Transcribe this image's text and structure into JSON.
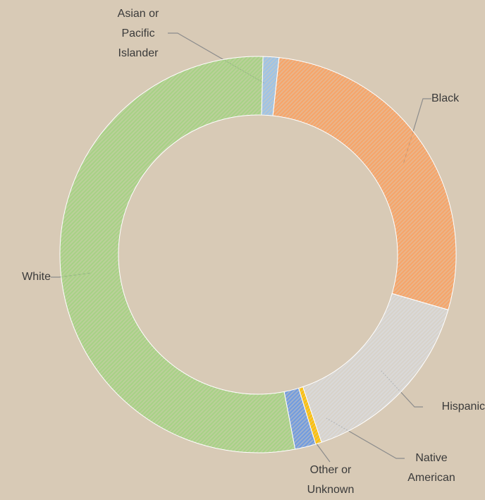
{
  "chart_data": {
    "type": "donut",
    "categories": [
      "Asian or Pacific Islander",
      "Black",
      "Hispanic",
      "Native American",
      "Other or Unknown",
      "White"
    ],
    "values": [
      1.3,
      27.8,
      15.3,
      0.5,
      1.7,
      53.4
    ],
    "colors": [
      "#9dc3e6",
      "#f7a468",
      "#d9d9d9",
      "#ffc000",
      "#6f9be0",
      "#a6d285"
    ]
  }
}
